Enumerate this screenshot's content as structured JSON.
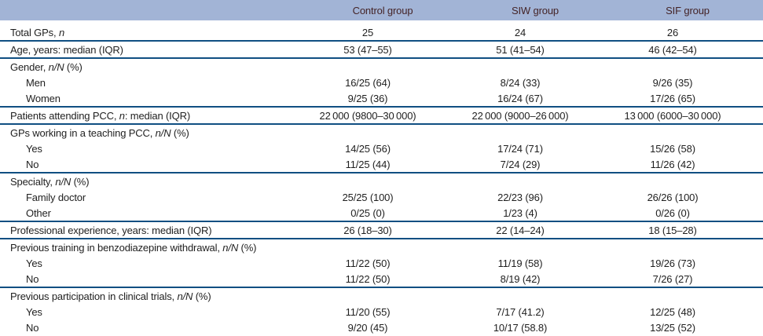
{
  "table": {
    "columns": [
      "",
      "Control group",
      "SIW group",
      "SIF group"
    ],
    "colors": {
      "header_background": "#a2b4d6",
      "header_text": "#442427",
      "rule_line": "#104f82",
      "body_text": "#1f1f1f"
    },
    "sections": [
      {
        "rows": [
          {
            "label": "Total GPs, *n*",
            "indent": false,
            "values": [
              "25",
              "24",
              "26"
            ]
          }
        ]
      },
      {
        "rows": [
          {
            "label": "Age, years: median (IQR)",
            "indent": false,
            "values": [
              "53 (47–55)",
              "51 (41–54)",
              "46 (42–54)"
            ]
          }
        ]
      },
      {
        "rows": [
          {
            "label": "Gender, *n/N* (%)",
            "indent": false,
            "values": [
              "",
              "",
              ""
            ]
          },
          {
            "label": "Men",
            "indent": true,
            "values": [
              "16/25 (64)",
              "8/24 (33)",
              "9/26 (35)"
            ]
          },
          {
            "label": "Women",
            "indent": true,
            "values": [
              "9/25 (36)",
              "16/24 (67)",
              "17/26 (65)"
            ]
          }
        ]
      },
      {
        "rows": [
          {
            "label": "Patients attending PCC, *n*: median (IQR)",
            "indent": false,
            "values": [
              "22 000 (9800–30 000)",
              "22 000 (9000–26 000)",
              "13 000 (6000–30 000)"
            ]
          }
        ]
      },
      {
        "rows": [
          {
            "label": "GPs working in a teaching PCC, *n/N* (%)",
            "indent": false,
            "values": [
              "",
              "",
              ""
            ]
          },
          {
            "label": "Yes",
            "indent": true,
            "values": [
              "14/25 (56)",
              "17/24 (71)",
              "15/26 (58)"
            ]
          },
          {
            "label": "No",
            "indent": true,
            "values": [
              "11/25 (44)",
              "7/24 (29)",
              "11/26 (42)"
            ]
          }
        ]
      },
      {
        "rows": [
          {
            "label": "Specialty, *n/N* (%)",
            "indent": false,
            "values": [
              "",
              "",
              ""
            ]
          },
          {
            "label": "Family doctor",
            "indent": true,
            "values": [
              "25/25 (100)",
              "22/23 (96)",
              "26/26 (100)"
            ]
          },
          {
            "label": "Other",
            "indent": true,
            "values": [
              "0/25 (0)",
              "1/23 (4)",
              "0/26 (0)"
            ]
          }
        ]
      },
      {
        "rows": [
          {
            "label": "Professional experience, years: median (IQR)",
            "indent": false,
            "values": [
              "26 (18–30)",
              "22 (14–24)",
              "18 (15–28)"
            ]
          }
        ]
      },
      {
        "rows": [
          {
            "label": "Previous training in benzodiazepine withdrawal, *n/N* (%)",
            "indent": false,
            "values": [
              "",
              "",
              ""
            ]
          },
          {
            "label": "Yes",
            "indent": true,
            "values": [
              "11/22 (50)",
              "11/19 (58)",
              "19/26 (73)"
            ]
          },
          {
            "label": "No",
            "indent": true,
            "values": [
              "11/22 (50)",
              "8/19 (42)",
              "7/26 (27)"
            ]
          }
        ]
      },
      {
        "rows": [
          {
            "label": "Previous participation in clinical trials, *n/N* (%)",
            "indent": false,
            "values": [
              "",
              "",
              ""
            ]
          },
          {
            "label": "Yes",
            "indent": true,
            "values": [
              "11/20 (55)",
              "7/17 (41.2)",
              "12/25 (48)"
            ]
          },
          {
            "label": "No",
            "indent": true,
            "values": [
              "9/20 (45)",
              "10/17 (58.8)",
              "13/25 (52)"
            ]
          }
        ]
      }
    ]
  }
}
